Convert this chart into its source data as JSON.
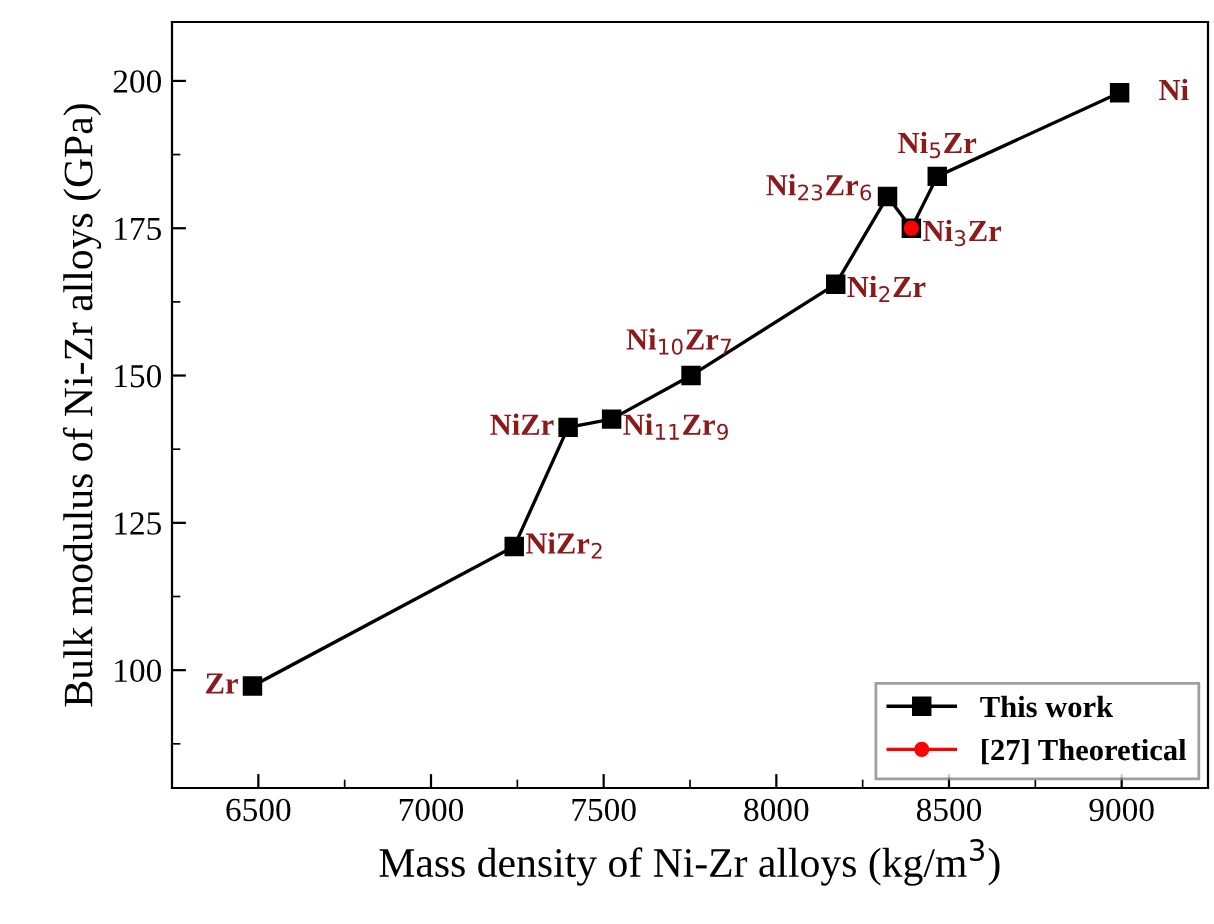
{
  "chart_data": {
    "type": "line",
    "xlabel": "Mass density of Ni-Zr alloys (kg/m$^{3}$)",
    "ylabel": "Bulk modulus of Ni-Zr alloys (GPa)",
    "xlim": [
      6250,
      9250
    ],
    "xticks": [
      6500,
      7000,
      7500,
      8000,
      8500,
      9000
    ],
    "ylim": [
      80,
      210
    ],
    "yticks": [
      100,
      125,
      150,
      175,
      200
    ],
    "legend": "bottom right",
    "grid": false,
    "series": [
      {
        "name": "This work",
        "color": "#000000",
        "marker": "square",
        "x": [
          6483,
          7241,
          7397,
          7523,
          7753,
          8172,
          8322,
          8391,
          8466,
          8994
        ],
        "values": [
          97.3,
          121,
          141.2,
          142.6,
          150,
          165.5,
          180.4,
          175,
          183.8,
          198
        ]
      },
      {
        "name": "[27] Theoretical",
        "color": "#ff0000",
        "marker": "circle",
        "x": [
          8391
        ],
        "values": [
          175
        ]
      }
    ],
    "annotations": [
      {
        "text": "Zr",
        "x": 6483,
        "y": 97.3
      },
      {
        "text": "NiZr$_{2}$",
        "x": 7241,
        "y": 121
      },
      {
        "text": "NiZr",
        "x": 7397,
        "y": 141.2
      },
      {
        "text": "Ni$_{11}$Zr$_{9}$",
        "x": 7523,
        "y": 142.6
      },
      {
        "text": "Ni$_{10}$Zr$_{7}$",
        "x": 7753,
        "y": 150
      },
      {
        "text": "Ni$_{2}$Zr",
        "x": 8172,
        "y": 165.5
      },
      {
        "text": "Ni$_{23}$Zr$_{6}$",
        "x": 8322,
        "y": 180.4
      },
      {
        "text": "Ni$_{3}$Zr",
        "x": 8391,
        "y": 175
      },
      {
        "text": "Ni$_{5}$Zr",
        "x": 8466,
        "y": 183.8
      },
      {
        "text": "Ni",
        "x": 8994,
        "y": 198
      }
    ]
  }
}
